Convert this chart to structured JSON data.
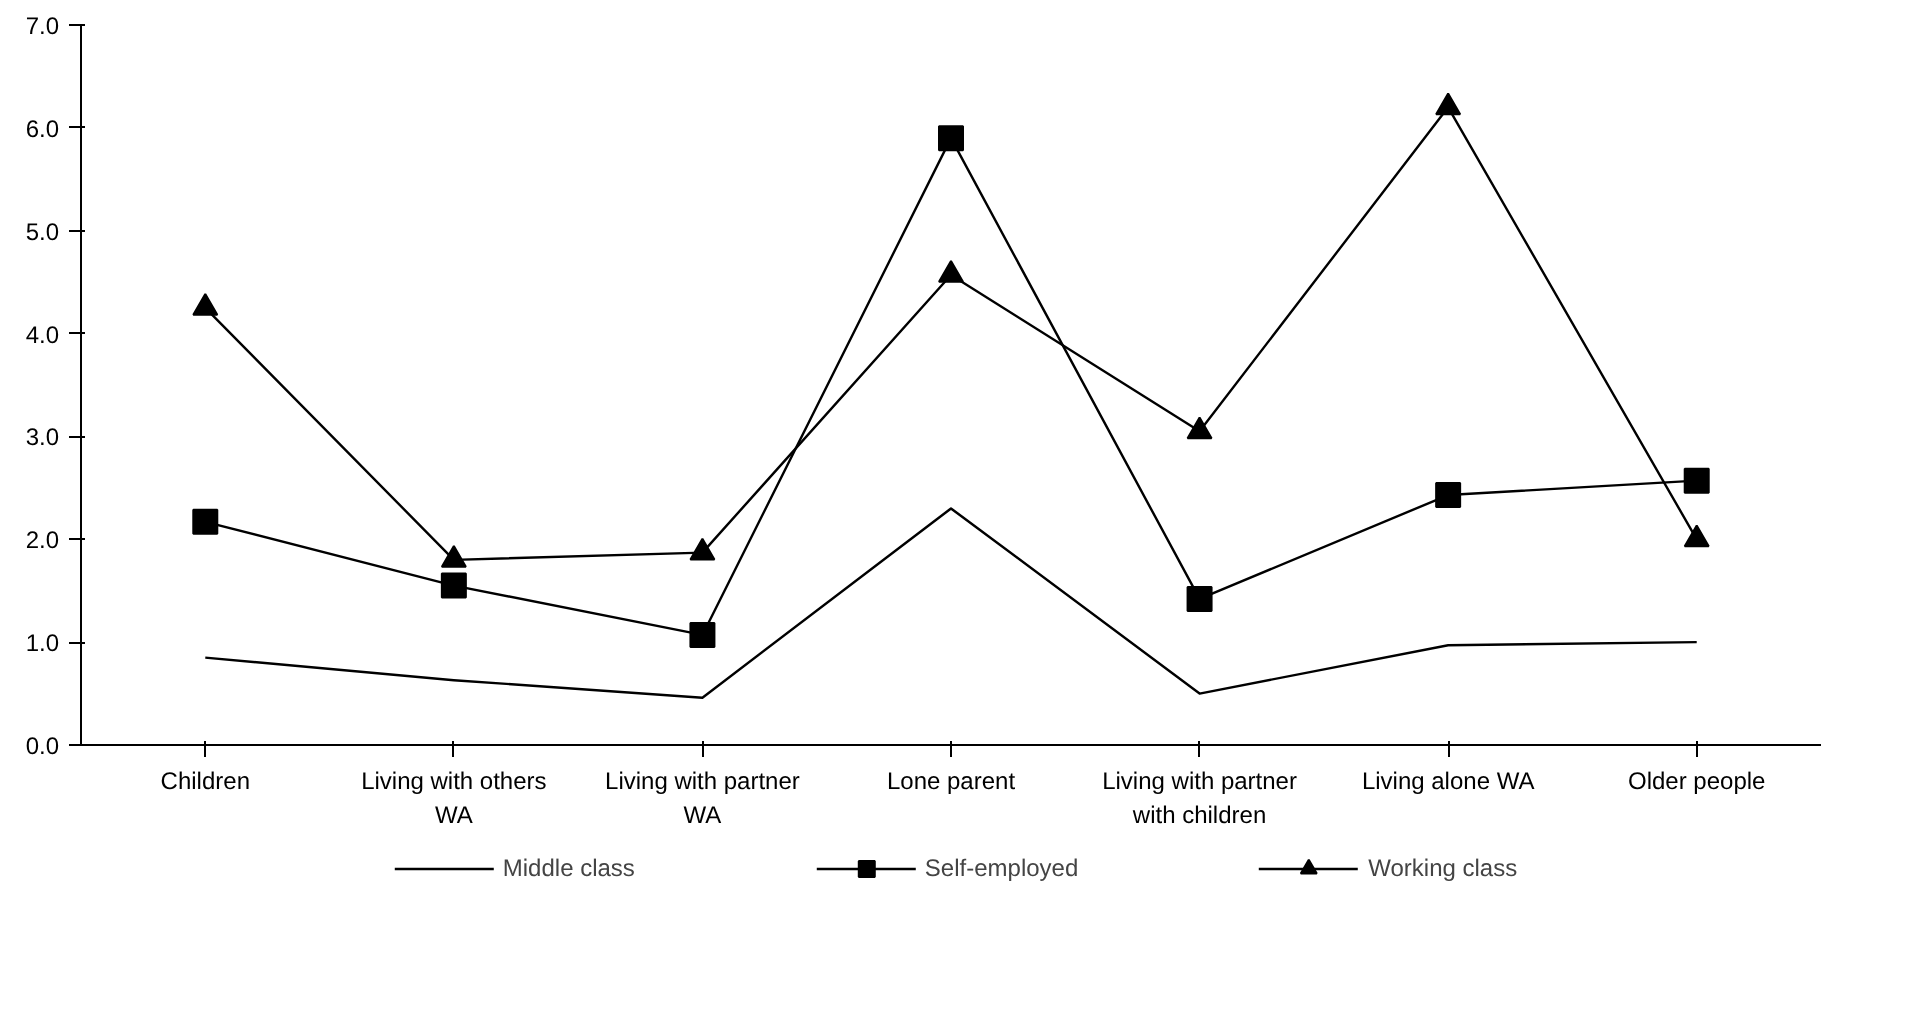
{
  "chart_data": {
    "type": "line",
    "categories": [
      "Children",
      "Living with others\nWA",
      "Living with partner\nWA",
      "Lone parent",
      "Living with partner\nwith children",
      "Living alone WA",
      "Older people"
    ],
    "series": [
      {
        "name": "Middle class",
        "color": "#000000",
        "marker": "none",
        "values": [
          0.85,
          0.63,
          0.46,
          2.3,
          0.5,
          0.97,
          1.0
        ]
      },
      {
        "name": "Self-employed",
        "color": "#000000",
        "marker": "square",
        "values": [
          2.17,
          1.55,
          1.07,
          5.9,
          1.42,
          2.43,
          2.57
        ]
      },
      {
        "name": "Working class",
        "color": "#000000",
        "marker": "triangle",
        "values": [
          4.25,
          1.8,
          1.87,
          4.57,
          3.05,
          6.2,
          2.0
        ]
      }
    ],
    "ylim": [
      0,
      7
    ],
    "yticks": [
      {
        "value": 0,
        "label": "0.0"
      },
      {
        "value": 1,
        "label": "1.0"
      },
      {
        "value": 2,
        "label": "2.0"
      },
      {
        "value": 3,
        "label": "3.0"
      },
      {
        "value": 4,
        "label": "4.0"
      },
      {
        "value": 5,
        "label": "5.0"
      },
      {
        "value": 6,
        "label": "6.0"
      },
      {
        "value": 7,
        "label": "7.0"
      }
    ],
    "grid": false,
    "legend": "bottom",
    "line_style": "solid"
  }
}
